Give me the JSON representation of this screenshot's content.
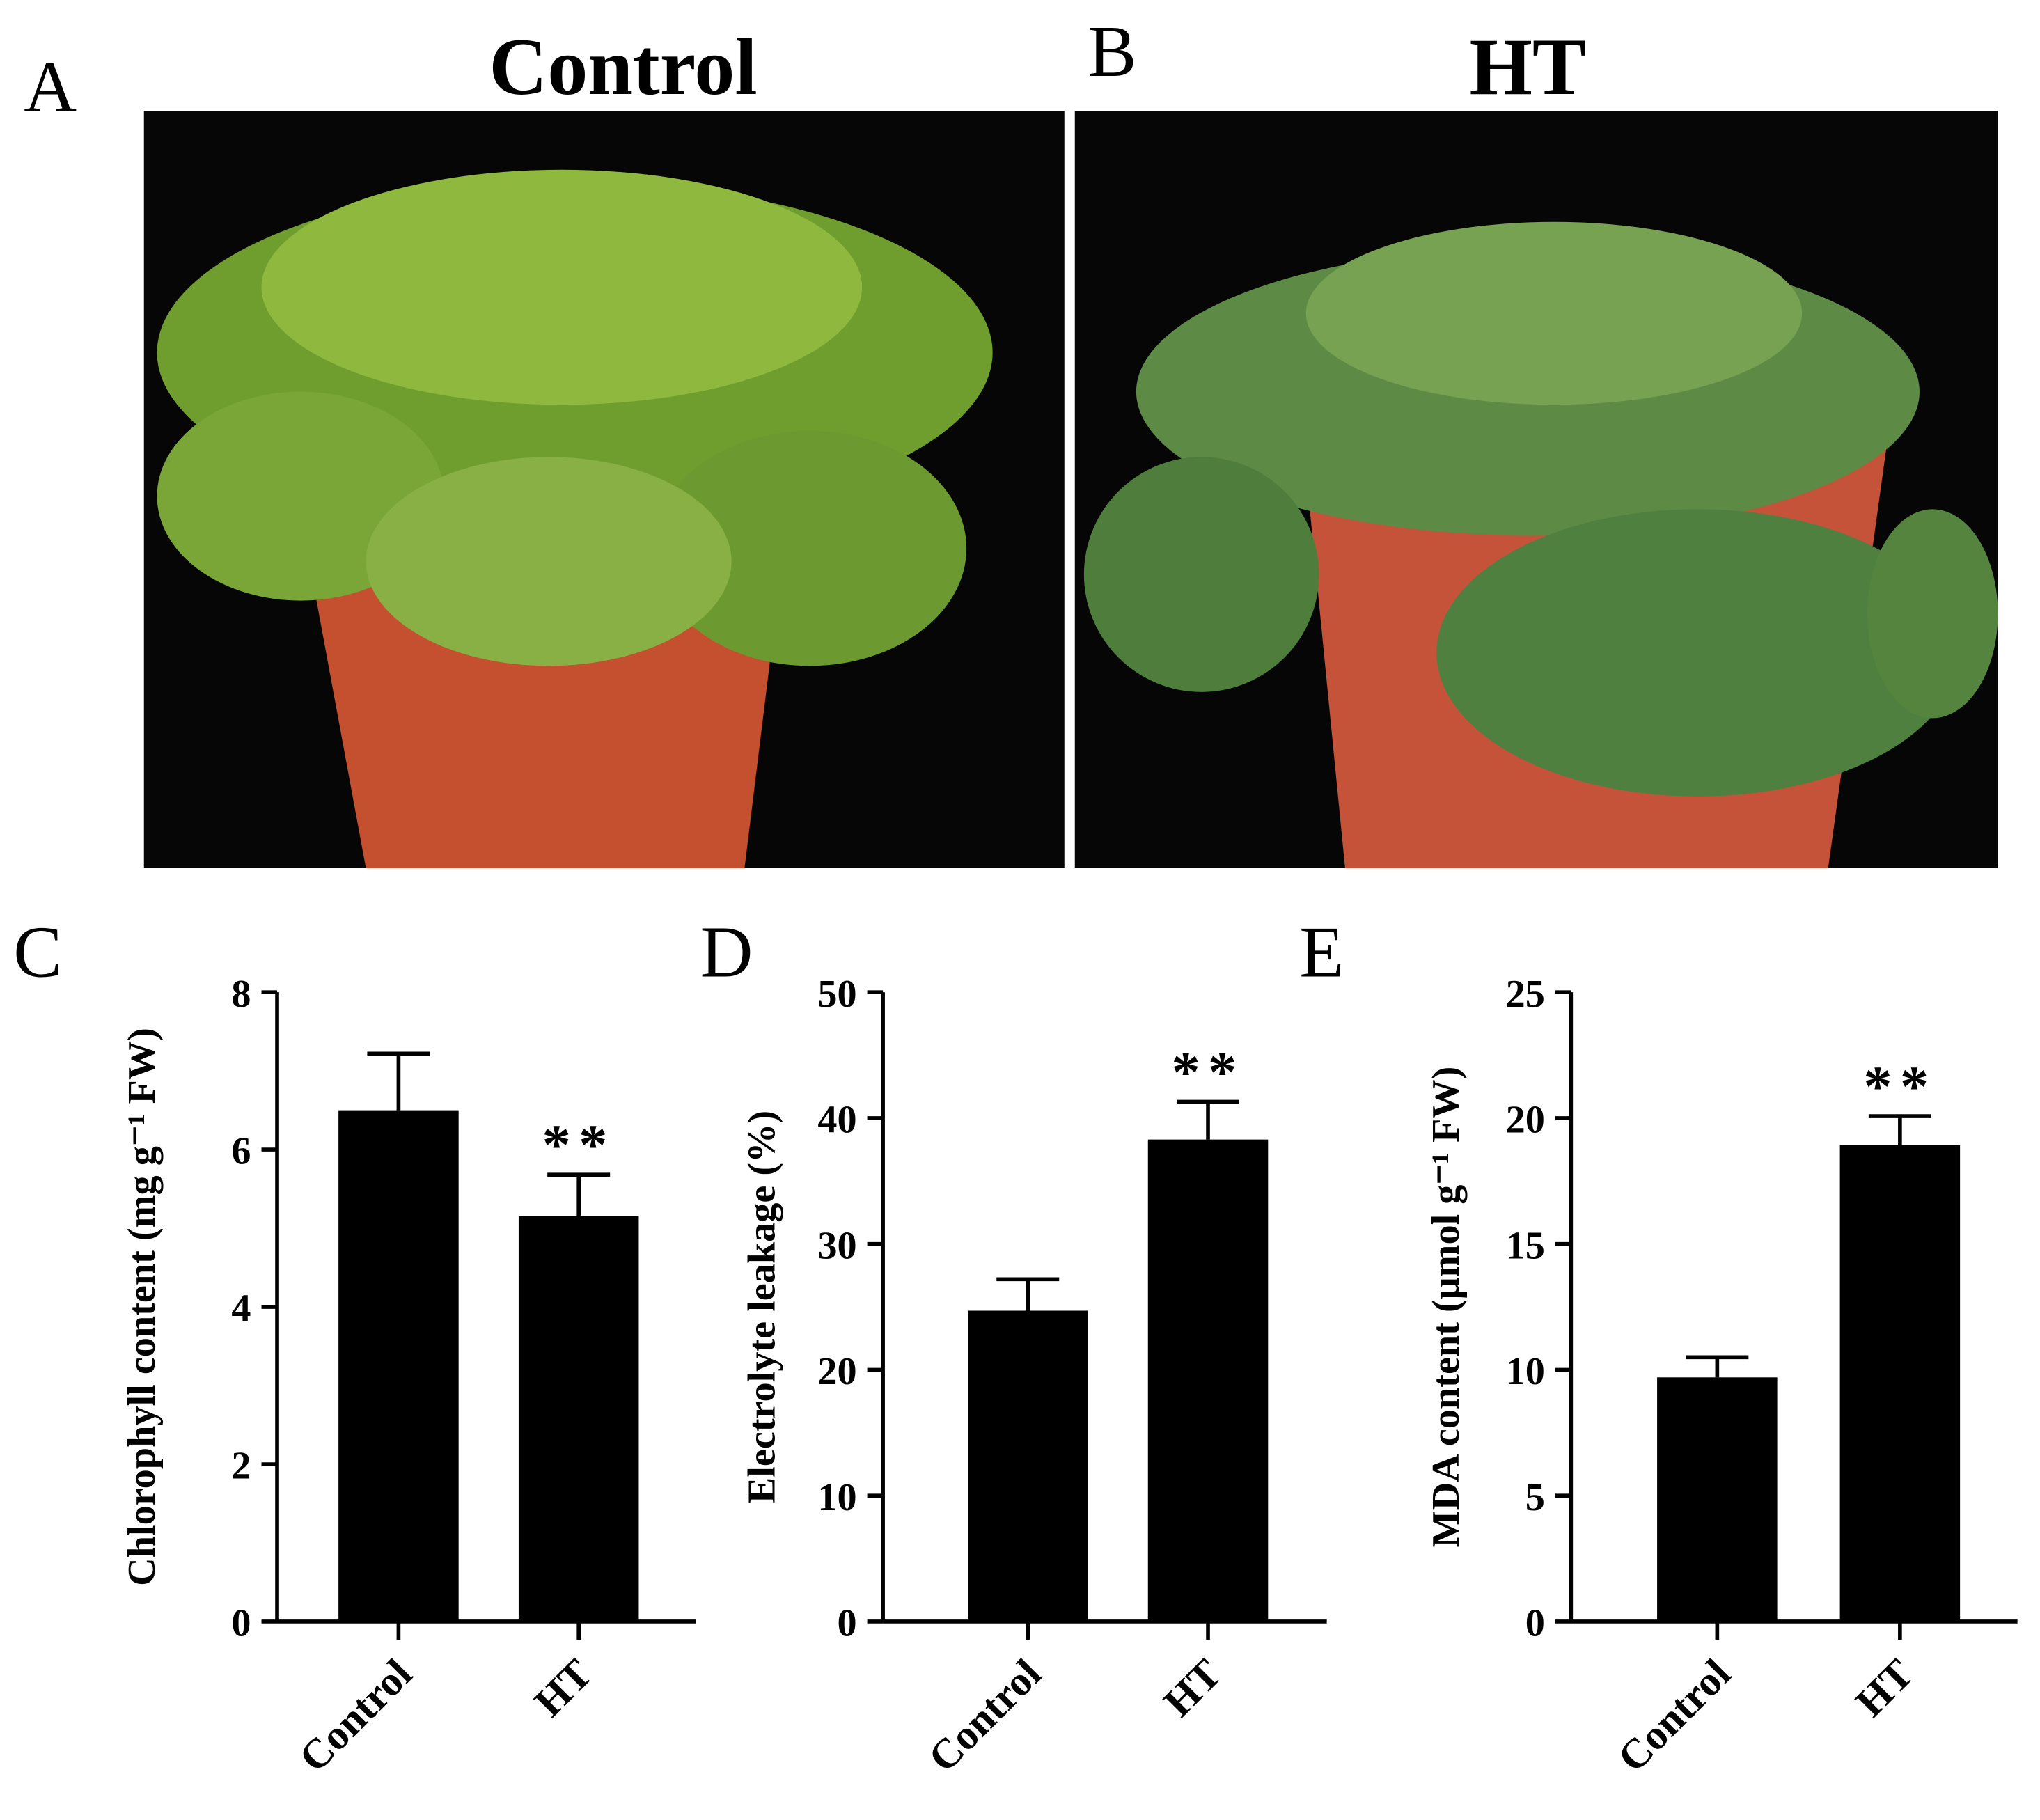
{
  "photos": [
    {
      "label": "A",
      "title": "Control"
    },
    {
      "label": "B",
      "title": "HT"
    }
  ],
  "chart_data": [
    {
      "type": "bar",
      "panel_label": "C",
      "ylabel": "Chlorophyll content (mg g⁻¹ FW)",
      "categories": [
        "Control",
        "HT"
      ],
      "values": [
        6.5,
        5.16
      ],
      "errors": [
        0.72,
        0.52
      ],
      "significance": [
        null,
        "**"
      ],
      "color": "#000000",
      "ylim": [
        0,
        8
      ],
      "yticks": [
        0,
        2,
        4,
        6,
        8
      ]
    },
    {
      "type": "bar",
      "panel_label": "D",
      "ylabel": "Electrolyte leakage (%)",
      "categories": [
        "Control",
        "HT"
      ],
      "values": [
        24.7,
        38.3
      ],
      "errors": [
        2.5,
        3.0
      ],
      "significance": [
        null,
        "**"
      ],
      "color": "#000000",
      "ylim": [
        0,
        50
      ],
      "yticks": [
        0,
        10,
        20,
        30,
        40,
        50
      ]
    },
    {
      "type": "bar",
      "panel_label": "E",
      "ylabel": "MDA content (μmol g⁻¹ FW)",
      "categories": [
        "Control",
        "HT"
      ],
      "values": [
        9.7,
        18.93
      ],
      "errors": [
        0.8,
        1.15
      ],
      "significance": [
        null,
        "**"
      ],
      "color": "#000000",
      "ylim": [
        0,
        25
      ],
      "yticks": [
        0,
        5,
        10,
        15,
        20,
        25
      ]
    }
  ]
}
